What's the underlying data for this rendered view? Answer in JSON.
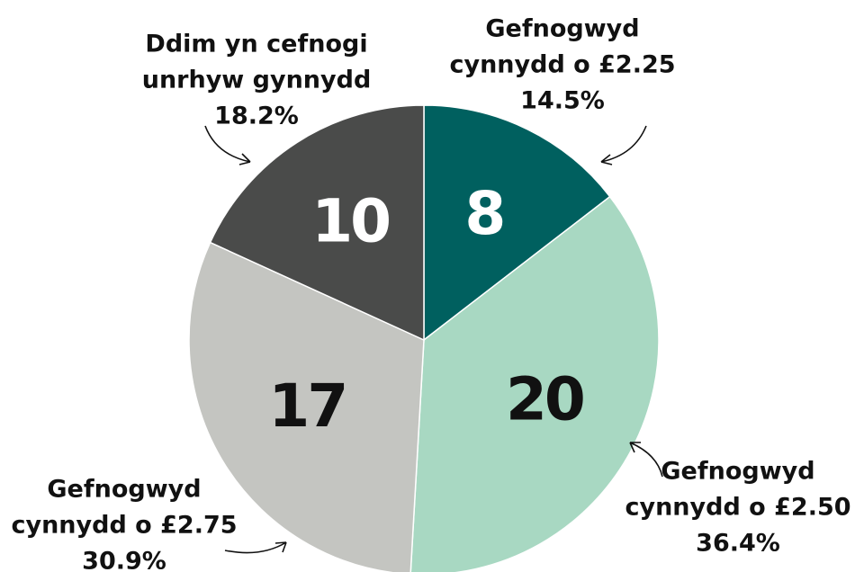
{
  "chart_data": {
    "type": "pie",
    "categories": [
      [
        "Gefnogwyd",
        "cynnydd o £2.25"
      ],
      [
        "Gefnogwyd",
        "cynnydd o £2.50"
      ],
      [
        "Gefnogwyd",
        "cynnydd o £2.75"
      ],
      [
        "Ddim yn cefnogi",
        "unrhyw gynnydd"
      ]
    ],
    "values": [
      8,
      20,
      17,
      10
    ],
    "percentages": [
      {
        "value": 14.5,
        "label": "14.5%"
      },
      {
        "value": 36.4,
        "label": "36.4%"
      },
      {
        "value": 30.9,
        "label": "30.9%"
      },
      {
        "value": 18.2,
        "label": "18.2%"
      }
    ],
    "colors": [
      "#00605f",
      "#a8d8c2",
      "#c4c5c1",
      "#4a4b4a"
    ],
    "value_label_colors": [
      "#ffffff",
      "#111111",
      "#111111",
      "#ffffff"
    ]
  }
}
